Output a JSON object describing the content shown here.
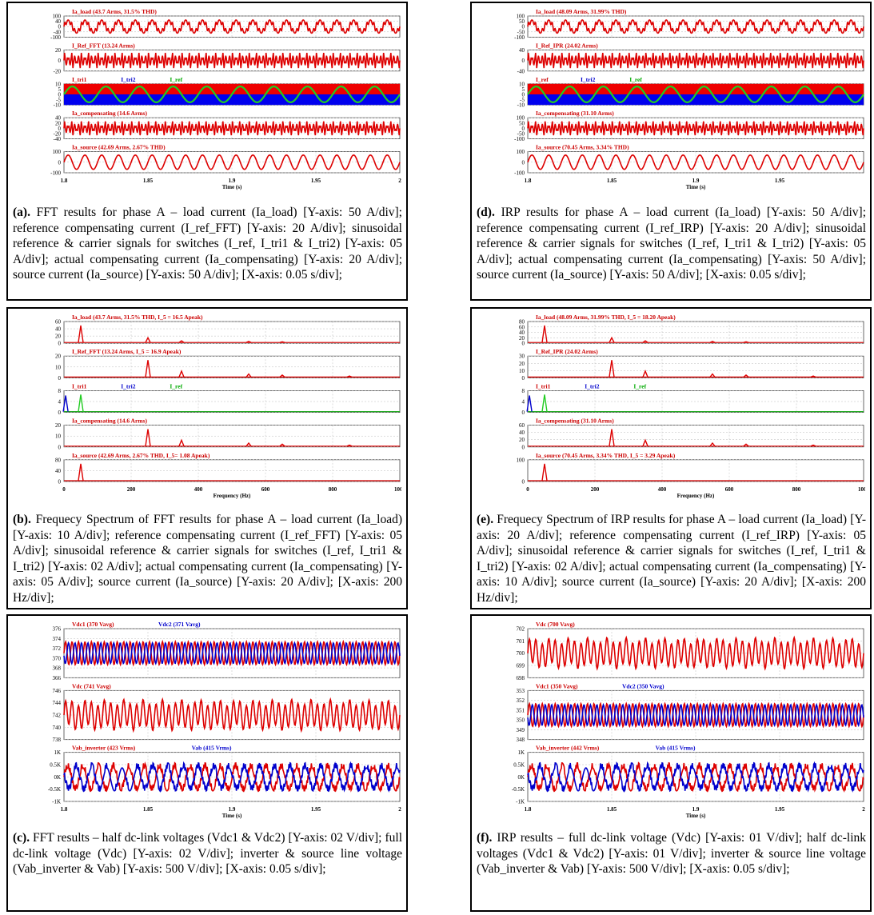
{
  "panels": [
    {
      "id": "a",
      "kind": "time",
      "x_ticks": [
        "1.8",
        "1.85",
        "1.9",
        "1.95",
        "2"
      ],
      "x_label": "Time (s)",
      "caption_label": "(a).",
      "caption": " FFT results for phase A – load current (Ia_load) [Y-axis: 50 A/div]; reference compensating current (I_ref_FFT) [Y-axis: 20 A/div]; sinusoidal reference & carrier signals for switches (I_ref, I_tri1 & I_tri2) [Y-axis: 05 A/div]; actual compensating current (Ia_compensating) [Y-axis: 20 A/div]; source current (Ia_source) [Y-axis: 50 A/div]; [X-axis: 0.05 s/div];",
      "subplots": [
        {
          "titles": [
            {
              "text": "Ia_load (43.7 Arms, 31.5% THD)",
              "color": "#cc0000"
            }
          ],
          "yticks": [
            "100",
            "40",
            "0",
            "-40",
            "-100"
          ],
          "signal": "load"
        },
        {
          "titles": [
            {
              "text": "I_Ref_FFT (13.24 Arms)",
              "color": "#cc0000"
            }
          ],
          "yticks": [
            "20",
            "0",
            "-20"
          ],
          "signal": "ref"
        },
        {
          "titles": [
            {
              "text": "I_tri1",
              "color": "#cc0000"
            },
            {
              "text": "I_tri2",
              "color": "#0000cc"
            },
            {
              "text": "I_ref",
              "color": "#00aa00"
            }
          ],
          "yticks": [
            "10",
            "5",
            "0",
            "-5",
            "-10"
          ],
          "signal": "tri"
        },
        {
          "titles": [
            {
              "text": "Ia_compensating (14.6 Arms)",
              "color": "#cc0000"
            }
          ],
          "yticks": [
            "40",
            "20",
            "0",
            "-20",
            "-40"
          ],
          "signal": "comp"
        },
        {
          "titles": [
            {
              "text": "Ia_source (42.69 Arms, 2.67% THD)",
              "color": "#cc0000"
            }
          ],
          "yticks": [
            "100",
            "0",
            "-100"
          ],
          "signal": "source"
        }
      ]
    },
    {
      "id": "b",
      "kind": "freq",
      "x_ticks": [
        "0",
        "200",
        "400",
        "600",
        "800",
        "1000"
      ],
      "x_label": "Frequency (Hz)",
      "caption_label": "(b).",
      "caption": " Frequecy Spectrum of FFT results for phase A – load current (Ia_load) [Y-axis: 10 A/div]; reference compensating current (I_ref_FFT) [Y-axis: 05 A/div]; sinusoidal reference & carrier signals for switches (I_ref, I_tri1 & I_tri2) [Y-axis: 02 A/div]; actual compensating current (Ia_compensating) [Y-axis: 05 A/div]; source current (Ia_source) [Y-axis: 20 A/div]; [X-axis: 200 Hz/div];",
      "subplots": [
        {
          "titles": [
            {
              "text": "Ia_load (43.7 Arms, 31.5% THD, I_5 = 16.5 Apeak)",
              "color": "#cc0000"
            }
          ],
          "yticks": [
            "60",
            "40",
            "20",
            "0"
          ],
          "signal": "spec_load"
        },
        {
          "titles": [
            {
              "text": "I_Ref_FFT (13.24 Arms, I_5 = 16.9 Apeak)",
              "color": "#cc0000"
            }
          ],
          "yticks": [
            "20",
            "10",
            "0"
          ],
          "signal": "spec_ref"
        },
        {
          "titles": [
            {
              "text": "I_tri1",
              "color": "#cc0000"
            },
            {
              "text": "I_tri2",
              "color": "#0000cc"
            },
            {
              "text": "I_ref",
              "color": "#00aa00"
            }
          ],
          "yticks": [
            "8",
            "4",
            "0"
          ],
          "signal": "spec_tri"
        },
        {
          "titles": [
            {
              "text": "Ia_compensating (14.6 Arms)",
              "color": "#cc0000"
            }
          ],
          "yticks": [
            "20",
            "10",
            "0"
          ],
          "signal": "spec_comp"
        },
        {
          "titles": [
            {
              "text": "Ia_source (42.69 Arms, 2.67% THD, I_5= 1.08 Apeak)",
              "color": "#cc0000"
            }
          ],
          "yticks": [
            "80",
            "40",
            "0"
          ],
          "signal": "spec_source"
        }
      ]
    },
    {
      "id": "c",
      "kind": "time",
      "x_ticks": [
        "1.8",
        "1.85",
        "1.9",
        "1.95",
        "2"
      ],
      "x_label": "Time (s)",
      "caption_label": "(c).",
      "caption": " FFT results – half dc-link voltages (Vdc1 & Vdc2) [Y-axis: 02 V/div]; full dc-link voltage (Vdc) [Y-axis: 02 V/div]; inverter & source line voltage (Vab_inverter & Vab) [Y-axis: 500 V/div]; [X-axis: 0.05 s/div];",
      "subplots": [
        {
          "titles": [
            {
              "text": "Vdc1 (370 Vavg)",
              "color": "#cc0000"
            },
            {
              "text": "Vdc2 (371 Vavg)",
              "color": "#0000cc"
            }
          ],
          "yticks": [
            "376",
            "374",
            "372",
            "370",
            "368",
            "366"
          ],
          "signal": "vhalf"
        },
        {
          "titles": [
            {
              "text": "Vdc (741 Vavg)",
              "color": "#cc0000"
            }
          ],
          "yticks": [
            "746",
            "744",
            "742",
            "740",
            "738"
          ],
          "signal": "vdc"
        },
        {
          "titles": [
            {
              "text": "Vab_inverter (423 Vrms)",
              "color": "#cc0000"
            },
            {
              "text": "Vab (415 Vrms)",
              "color": "#0000cc"
            }
          ],
          "yticks": [
            "1K",
            "0.5K",
            "0K",
            "-0.5K",
            "-1K"
          ],
          "signal": "vab"
        }
      ]
    },
    {
      "id": "d",
      "kind": "time",
      "x_ticks": [
        "1.8",
        "1.85",
        "1.9",
        "1.95"
      ],
      "x_label": "Time (s)",
      "caption_label": "(d).",
      "caption": " IRP results for phase A – load current (Ia_load) [Y-axis: 50 A/div]; reference compensating current (I_ref_IRP) [Y-axis: 20 A/div]; sinusoidal reference & carrier signals for switches (I_ref, I_tri1 & I_tri2) [Y-axis: 05 A/div]; actual compensating current (Ia_compensating) [Y-axis: 50 A/div]; source current (Ia_source) [Y-axis: 50 A/div]; [X-axis: 0.05 s/div];",
      "subplots": [
        {
          "titles": [
            {
              "text": "Ia_load (48.09 Arms, 31.99% THD)",
              "color": "#cc0000"
            }
          ],
          "yticks": [
            "100",
            "50",
            "0",
            "-50",
            "-100"
          ],
          "signal": "load"
        },
        {
          "titles": [
            {
              "text": "I_Ref_IPR (24.02 Arms)",
              "color": "#cc0000"
            }
          ],
          "yticks": [
            "40",
            "0",
            "-40"
          ],
          "signal": "ref"
        },
        {
          "titles": [
            {
              "text": "I_ref",
              "color": "#cc0000"
            },
            {
              "text": "I_tri2",
              "color": "#0000cc"
            },
            {
              "text": "I_ref",
              "color": "#00aa00"
            }
          ],
          "yticks": [
            "10",
            "5",
            "0",
            "-5",
            "-10"
          ],
          "signal": "tri"
        },
        {
          "titles": [
            {
              "text": "Ia_compensating (31.10 Arms)",
              "color": "#cc0000"
            }
          ],
          "yticks": [
            "100",
            "50",
            "0",
            "-50",
            "-100"
          ],
          "signal": "comp"
        },
        {
          "titles": [
            {
              "text": "Ia_source (70.45 Arms, 3.34% THD)",
              "color": "#cc0000"
            }
          ],
          "yticks": [
            "100",
            "0",
            "-100"
          ],
          "signal": "source"
        }
      ]
    },
    {
      "id": "e",
      "kind": "freq",
      "x_ticks": [
        "0",
        "200",
        "400",
        "600",
        "800",
        "1000"
      ],
      "x_label": "Frequency (Hz)",
      "caption_label": "(e).",
      "caption": " Frequecy Spectrum of IRP results for phase A – load current (Ia_load) [Y-axis: 20 A/div]; reference compensating current (I_ref_IRP) [Y-axis: 05 A/div]; sinusoidal reference & carrier signals for switches (I_ref, I_tri1 & I_tri2) [Y-axis: 02 A/div]; actual compensating current (Ia_compensating) [Y-axis: 10 A/div]; source current (Ia_source) [Y-axis: 20 A/div]; [X-axis: 200 Hz/div];",
      "subplots": [
        {
          "titles": [
            {
              "text": "Ia_load (48.09 Arms, 31.99% THD, I_5 = 18.20 Apeak)",
              "color": "#cc0000"
            }
          ],
          "yticks": [
            "80",
            "60",
            "40",
            "20",
            "0"
          ],
          "signal": "spec_load"
        },
        {
          "titles": [
            {
              "text": "I_Ref_IPR (24.02 Arms)",
              "color": "#cc0000"
            }
          ],
          "yticks": [
            "30",
            "20",
            "10",
            "0"
          ],
          "signal": "spec_ref"
        },
        {
          "titles": [
            {
              "text": "I_tri1",
              "color": "#cc0000"
            },
            {
              "text": "I_tri2",
              "color": "#0000cc"
            },
            {
              "text": "I_ref",
              "color": "#00aa00"
            }
          ],
          "yticks": [
            "8",
            "4",
            "0"
          ],
          "signal": "spec_tri"
        },
        {
          "titles": [
            {
              "text": "Ia_compensating (31.10 Arms)",
              "color": "#cc0000"
            }
          ],
          "yticks": [
            "60",
            "40",
            "20",
            "0"
          ],
          "signal": "spec_comp"
        },
        {
          "titles": [
            {
              "text": "Ia_source (70.45 Arms, 3.34% THD, I_5 = 3.29 Apeak)",
              "color": "#cc0000"
            }
          ],
          "yticks": [
            "100",
            "0"
          ],
          "signal": "spec_source"
        }
      ]
    },
    {
      "id": "f",
      "kind": "time",
      "x_ticks": [
        "1.8",
        "1.85",
        "1.9",
        "1.95",
        "2"
      ],
      "x_label": "Time (s)",
      "caption_label": "(f).",
      "caption": " IRP results – full dc-link voltage (Vdc) [Y-axis: 01 V/div]; half dc-link voltages (Vdc1 & Vdc2) [Y-axis: 01 V/div]; inverter & source line voltage (Vab_inverter & Vab) [Y-axis: 500 V/div]; [X-axis: 0.05 s/div];",
      "subplots": [
        {
          "titles": [
            {
              "text": "Vdc (700 Vavg)",
              "color": "#cc0000"
            }
          ],
          "yticks": [
            "702",
            "701",
            "700",
            "699",
            "698"
          ],
          "signal": "vdc"
        },
        {
          "titles": [
            {
              "text": "Vdc1 (350 Vavg)",
              "color": "#cc0000"
            },
            {
              "text": "Vdc2 (350 Vavg)",
              "color": "#0000cc"
            }
          ],
          "yticks": [
            "353",
            "352",
            "351",
            "350",
            "349",
            "348"
          ],
          "signal": "vhalf"
        },
        {
          "titles": [
            {
              "text": "Vab_inverter (442 Vrms)",
              "color": "#cc0000"
            },
            {
              "text": "Vab (415 Vrms)",
              "color": "#0000cc"
            }
          ],
          "yticks": [
            "1K",
            "0.5K",
            "0K",
            "-0.5K",
            "-1K"
          ],
          "signal": "vab"
        }
      ]
    }
  ]
}
